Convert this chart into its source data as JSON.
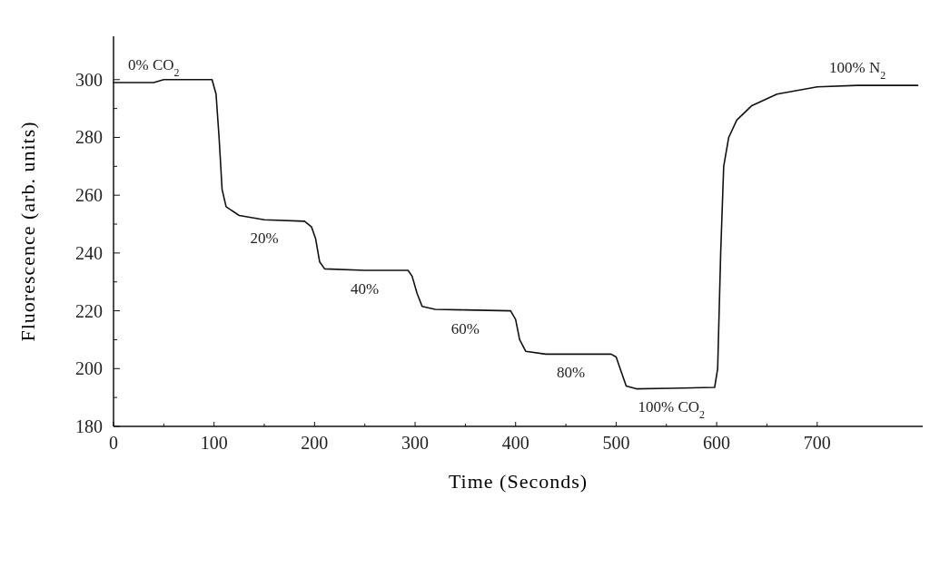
{
  "chart_data": {
    "type": "line",
    "xlabel": "Time (Seconds)",
    "ylabel": "Fluorescence (arb. units)",
    "xlim": [
      0,
      805
    ],
    "ylim": [
      180,
      315
    ],
    "xticks": [
      0,
      {
        "value": 50,
        "label": null
      },
      100,
      {
        "value": 150,
        "label": null
      },
      200,
      {
        "value": 250,
        "label": null
      },
      300,
      {
        "value": 350,
        "label": null
      },
      400,
      {
        "value": 450,
        "label": null
      },
      500,
      {
        "value": 550,
        "label": null
      },
      600,
      {
        "value": 650,
        "label": null
      },
      700
    ],
    "yticks": [
      180,
      {
        "value": 190,
        "label": null
      },
      200,
      {
        "value": 210,
        "label": null
      },
      220,
      {
        "value": 230,
        "label": null
      },
      240,
      {
        "value": 250,
        "label": null
      },
      260,
      {
        "value": 270,
        "label": null
      },
      280,
      {
        "value": 290,
        "label": null
      },
      300
    ],
    "grid": false,
    "marker": "none",
    "line_style": "solid",
    "x": [
      0,
      40,
      50,
      98,
      102,
      105,
      108,
      112,
      125,
      150,
      190,
      197,
      201,
      205,
      210,
      250,
      293,
      297,
      302,
      307,
      320,
      350,
      395,
      400,
      404,
      410,
      430,
      455,
      495,
      500,
      505,
      510,
      520,
      555,
      598,
      601,
      604,
      607,
      612,
      620,
      635,
      660,
      700,
      740,
      800
    ],
    "series": [
      {
        "color": "#111111",
        "values": [
          299,
          299,
          300,
          300,
          295,
          280,
          262,
          256,
          253,
          251.5,
          251,
          249,
          245,
          237,
          234.5,
          234,
          234,
          232,
          226,
          221.5,
          220.5,
          220.3,
          220,
          217,
          210,
          206,
          205,
          205,
          205,
          204,
          199,
          194,
          193,
          193.2,
          193.5,
          200,
          240,
          270,
          280,
          286,
          291,
          295,
          297.5,
          298,
          298
        ]
      }
    ],
    "annotations": [
      {
        "text": "0% CO$_{2}$",
        "x": 40,
        "y": 299
      },
      {
        "text": "20%",
        "x": 150,
        "y": 251.5
      },
      {
        "text": "40%",
        "x": 250,
        "y": 234
      },
      {
        "text": "60%",
        "x": 350,
        "y": 220.3
      },
      {
        "text": "80%",
        "x": 455,
        "y": 205
      },
      {
        "text": "100% CO$_{2}$",
        "x": 555,
        "y": 193.2
      },
      {
        "text": "100% N$_{2}$",
        "x": 740,
        "y": 298
      }
    ]
  }
}
